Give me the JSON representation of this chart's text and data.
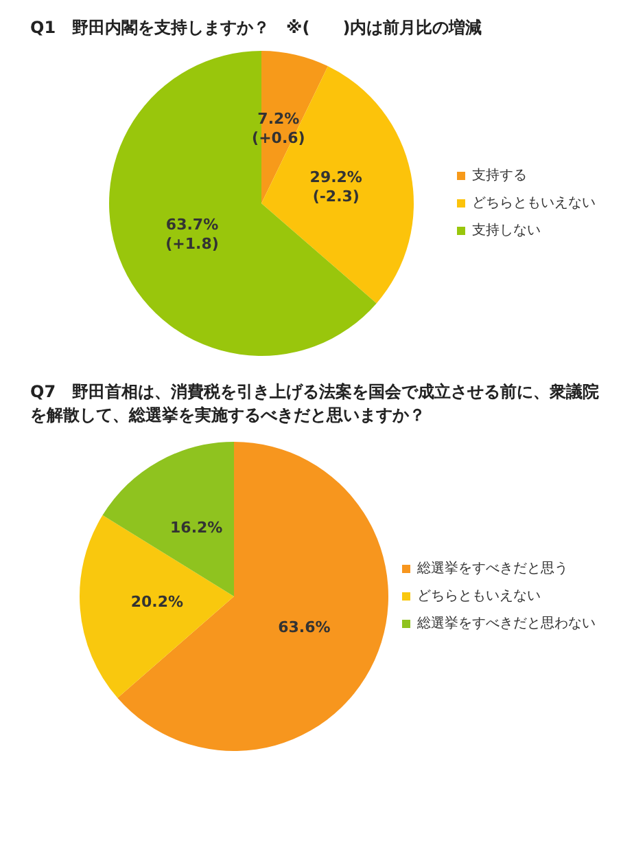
{
  "chart_data": [
    {
      "type": "pie",
      "title": "Q1　野田内閣を支持しますか？　※(　　)内は前月比の増減",
      "categories": [
        "支持する",
        "どちらともいえない",
        "支持しない"
      ],
      "values": [
        7.2,
        29.2,
        63.7
      ],
      "colors": [
        "#f79a1a",
        "#fcc30b",
        "#99c60c"
      ],
      "value_labels": [
        "7.2%\n(+0.6)",
        "29.2%\n(-2.3)",
        "63.7%\n(+1.8)"
      ],
      "legend": "right"
    },
    {
      "type": "pie",
      "title": "Q7　野田首相は、消費税を引き上げる法案を国会で成立させる前に、衆議院を解散して、総選挙を実施するべきだと思いますか？",
      "categories": [
        "総選挙をすべきだと思う",
        "どちらともいえない",
        "総選挙をすべきだと思わない"
      ],
      "values": [
        63.6,
        20.2,
        16.2
      ],
      "colors": [
        "#f7961e",
        "#f9c80e",
        "#8fc31f"
      ],
      "value_labels": [
        "63.6%",
        "20.2%",
        "16.2%"
      ],
      "legend": "right"
    }
  ]
}
